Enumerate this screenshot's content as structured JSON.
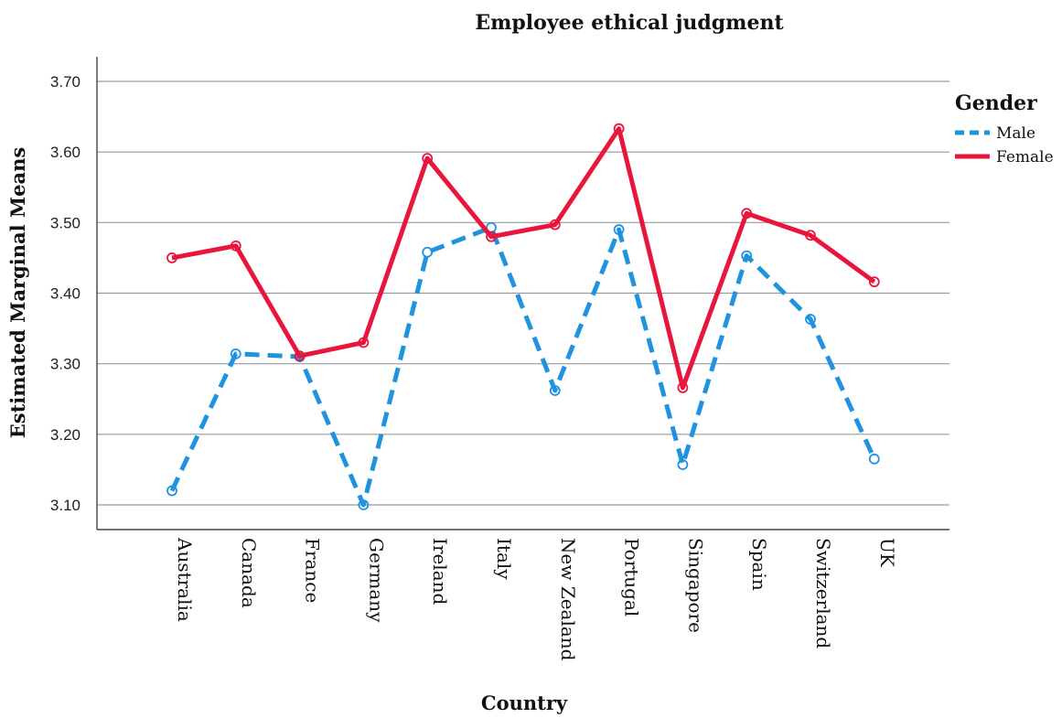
{
  "chart_data": {
    "type": "line",
    "title": "Employee ethical judgment",
    "xlabel": "Country",
    "ylabel": "Estimated Marginal Means",
    "ylim": [
      3.065,
      3.735
    ],
    "yticks": [
      "3.10",
      "3.20",
      "3.30",
      "3.40",
      "3.50",
      "3.60",
      "3.70"
    ],
    "ytick_values": [
      3.1,
      3.2,
      3.3,
      3.4,
      3.5,
      3.6,
      3.7
    ],
    "grid": true,
    "legend": {
      "title": "Gender",
      "placement": "top-right"
    },
    "categories": [
      "Australia",
      "Canada",
      "France",
      "Germany",
      "Ireland",
      "Italy",
      "New Zealand",
      "Portugal",
      "Singapore",
      "Spain",
      "Switzerland",
      "UK"
    ],
    "series": [
      {
        "name": "Male",
        "color": "#1f93e0",
        "dash": "dashed",
        "values": [
          3.12,
          3.314,
          3.31,
          3.1,
          3.458,
          3.493,
          3.262,
          3.49,
          3.157,
          3.453,
          3.363,
          3.165
        ]
      },
      {
        "name": "Female",
        "color": "#e8163c",
        "dash": "solid",
        "values": [
          3.45,
          3.467,
          3.311,
          3.33,
          3.591,
          3.48,
          3.497,
          3.633,
          3.266,
          3.513,
          3.482,
          3.416
        ]
      }
    ]
  }
}
